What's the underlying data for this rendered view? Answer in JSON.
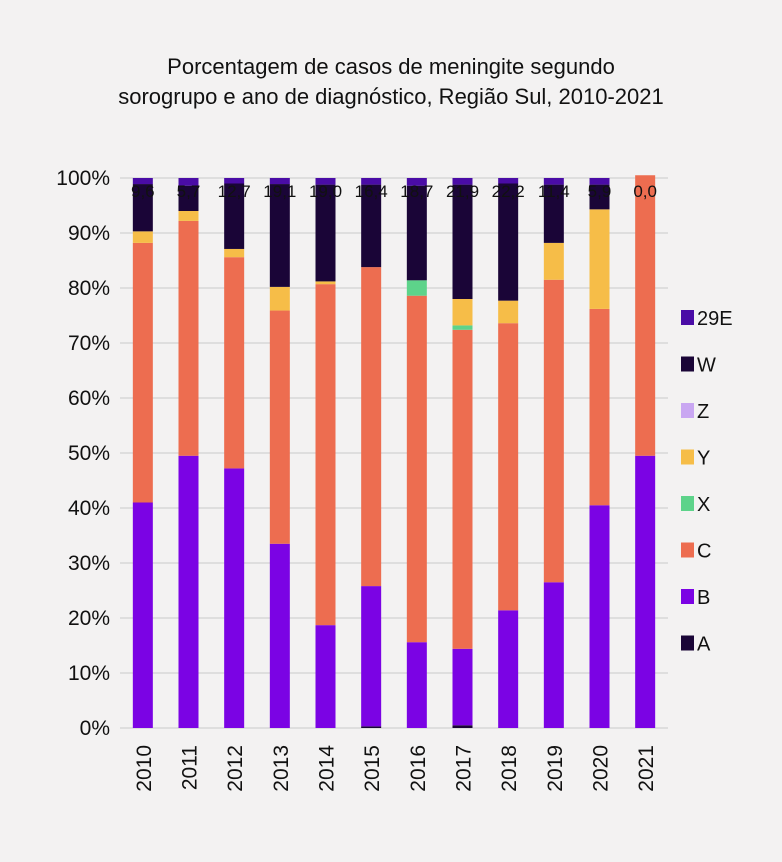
{
  "chart_data": {
    "type": "bar",
    "stacked": true,
    "title_line1": "Porcentagem de casos de meningite segundo",
    "title_line2": "sorogrupo e ano de diagnóstico, Região Sul, 2010-2021",
    "xlabel": "",
    "ylabel": "",
    "ylim": [
      0,
      100
    ],
    "y_ticks": [
      "0%",
      "10%",
      "20%",
      "30%",
      "40%",
      "50%",
      "60%",
      "70%",
      "80%",
      "90%",
      "100%"
    ],
    "grid": true,
    "legend_position": "right",
    "categories": [
      "2010",
      "2011",
      "2012",
      "2013",
      "2014",
      "2015",
      "2016",
      "2017",
      "2018",
      "2019",
      "2020",
      "2021"
    ],
    "top_labels": [
      "9,6",
      "5,7",
      "12,7",
      "19,1",
      "19,0",
      "16,4",
      "18,7",
      "21,9",
      "22,2",
      "11,4",
      "5,9",
      "0,0"
    ],
    "series": [
      {
        "name": "A",
        "color": "#1a0537",
        "values": [
          0,
          0,
          0,
          0,
          0,
          0.3,
          0,
          0.5,
          0,
          0,
          0,
          0
        ]
      },
      {
        "name": "B",
        "color": "#7b03e4",
        "values": [
          41,
          49.5,
          47.2,
          33.5,
          18.7,
          25.5,
          15.6,
          13.9,
          21.4,
          26.5,
          40.5,
          49.5
        ]
      },
      {
        "name": "C",
        "color": "#ed6d50",
        "values": [
          47.2,
          42.7,
          38.4,
          42.4,
          62,
          58,
          63,
          58,
          52.2,
          55,
          35.7,
          51
        ]
      },
      {
        "name": "X",
        "color": "#5dd38a",
        "values": [
          0,
          0,
          0,
          0,
          0,
          0,
          2.8,
          0.8,
          0,
          0,
          0,
          0
        ]
      },
      {
        "name": "Y",
        "color": "#f6bd48",
        "values": [
          2.1,
          1.8,
          1.5,
          4.3,
          0.5,
          0,
          0,
          4.8,
          4.1,
          6.7,
          18.1,
          0
        ]
      },
      {
        "name": "Z",
        "color": "#c9a7f2",
        "values": [
          0,
          0,
          0,
          0,
          0,
          0,
          0,
          0,
          0,
          0,
          0,
          0
        ]
      },
      {
        "name": "W",
        "color": "#1a0537",
        "values": [
          8.6,
          4.6,
          11.9,
          18.7,
          17.6,
          15,
          17.2,
          20.8,
          21.3,
          10.6,
          4.5,
          0
        ]
      },
      {
        "name": "29E",
        "color": "#4a0ca6",
        "values": [
          1.1,
          1.4,
          1,
          1.1,
          1.2,
          1.2,
          1.4,
          1.2,
          1,
          1.2,
          1.2,
          0
        ]
      }
    ],
    "legend_order": [
      "29E",
      "W",
      "Z",
      "Y",
      "X",
      "C",
      "B",
      "A"
    ]
  }
}
